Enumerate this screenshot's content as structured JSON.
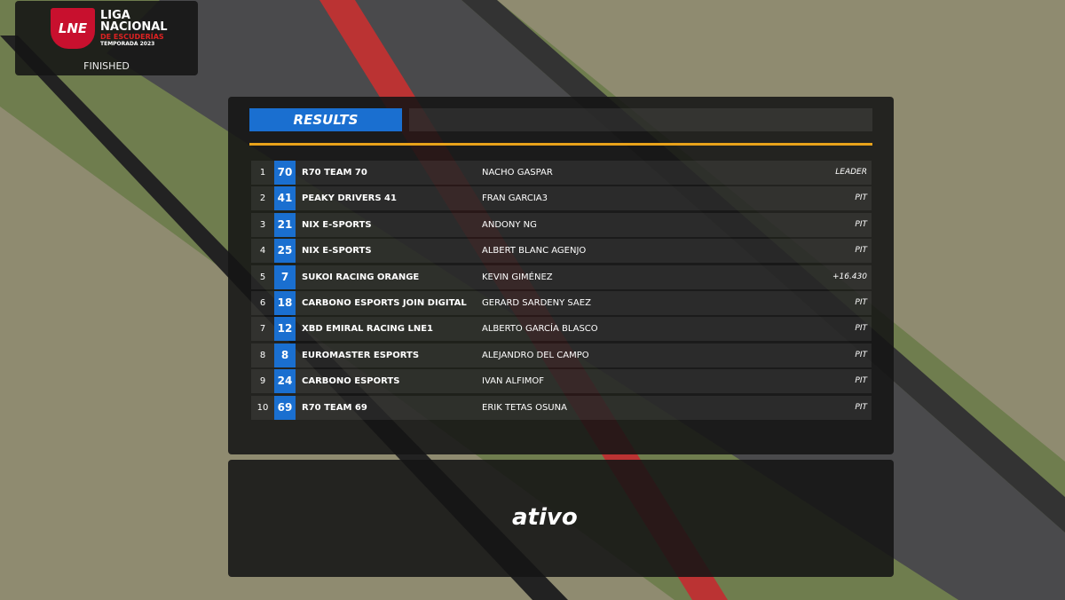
{
  "header": {
    "logo": "LNE",
    "league": "LIGA NACIONAL",
    "subtitle": "DE ESCUDERÍAS",
    "season": "TEMPORADA 2023",
    "status": "FINISHED"
  },
  "results": {
    "title": "RESULTS",
    "rows": [
      {
        "position": 1,
        "number": 70,
        "team": "R70 TEAM  70",
        "driver": "NACHO GASPAR",
        "status": "LEADER"
      },
      {
        "position": 2,
        "number": 41,
        "team": "PEAKY DRIVERS  41",
        "driver": "FRAN GARCIA3",
        "status": "PIT"
      },
      {
        "position": 3,
        "number": 21,
        "team": "NIX E-SPORTS",
        "driver": "ANDONY NG",
        "status": "PIT"
      },
      {
        "position": 4,
        "number": 25,
        "team": "NIX E-SPORTS",
        "driver": "ALBERT BLANC AGENJO",
        "status": "PIT"
      },
      {
        "position": 5,
        "number": 7,
        "team": "SUKOI RACING ORANGE",
        "driver": "KEVIN GIMÉNEZ",
        "status": "+16.430"
      },
      {
        "position": 6,
        "number": 18,
        "team": "CARBONO ESPORTS JOIN DIGITAL",
        "driver": "GERARD SARDENY SAEZ",
        "status": "PIT"
      },
      {
        "position": 7,
        "number": 12,
        "team": "XBD EMIRAL RACING LNE1",
        "driver": "ALBERTO GARCÍA BLASCO",
        "status": "PIT"
      },
      {
        "position": 8,
        "number": 8,
        "team": "EUROMASTER ESPORTS",
        "driver": "ALEJANDRO DEL CAMPO",
        "status": "PIT"
      },
      {
        "position": 9,
        "number": 24,
        "team": "CARBONO ESPORTS",
        "driver": "IVAN ALFIMOF",
        "status": "PIT"
      },
      {
        "position": 10,
        "number": 69,
        "team": "R70 TEAM  69",
        "driver": "ERIK TETAS OSUNA",
        "status": "PIT"
      }
    ]
  },
  "sponsor": {
    "logo": "ativo"
  }
}
